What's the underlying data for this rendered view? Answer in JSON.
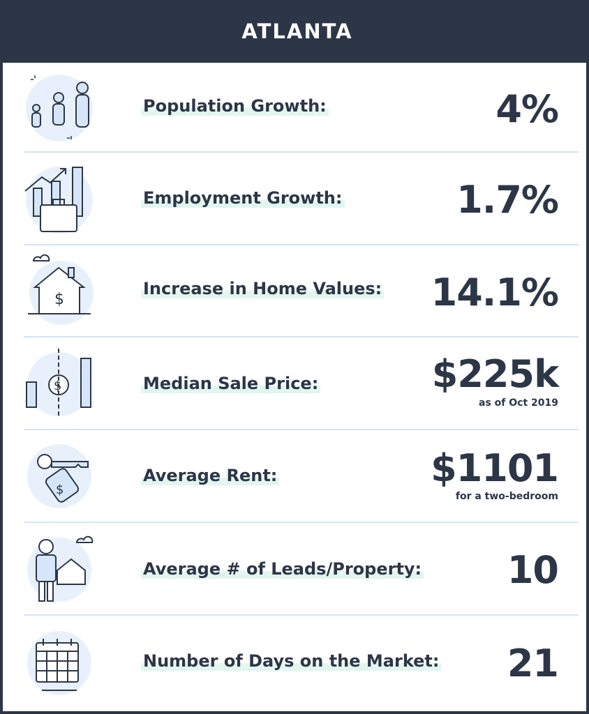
{
  "title": "ATLANTA",
  "stats": [
    {
      "label": "Population Growth:",
      "value": "4%",
      "icon": "family-icon"
    },
    {
      "label": "Employment Growth:",
      "value": "1.7%",
      "icon": "briefcase-chart-icon"
    },
    {
      "label": "Increase in Home Values:",
      "value": "14.1%",
      "icon": "house-dollar-icon"
    },
    {
      "label": "Median Sale Price:",
      "value": "$225k",
      "note": "as  of Oct 2019",
      "icon": "price-exchange-icon"
    },
    {
      "label": "Average Rent:",
      "value": "$1101",
      "note": "for a two-bedroom",
      "icon": "key-tag-icon"
    },
    {
      "label": "Average # of Leads/Property:",
      "value": "10",
      "icon": "person-house-icon"
    },
    {
      "label": "Number of Days on the Market:",
      "value": "21",
      "icon": "calendar-icon"
    }
  ],
  "colors": {
    "header": "#2c3646",
    "text": "#2c3646",
    "highlight": "#e2f6ef",
    "icon_fill": "#d6e6f8",
    "divider": "#d3e3f4"
  }
}
